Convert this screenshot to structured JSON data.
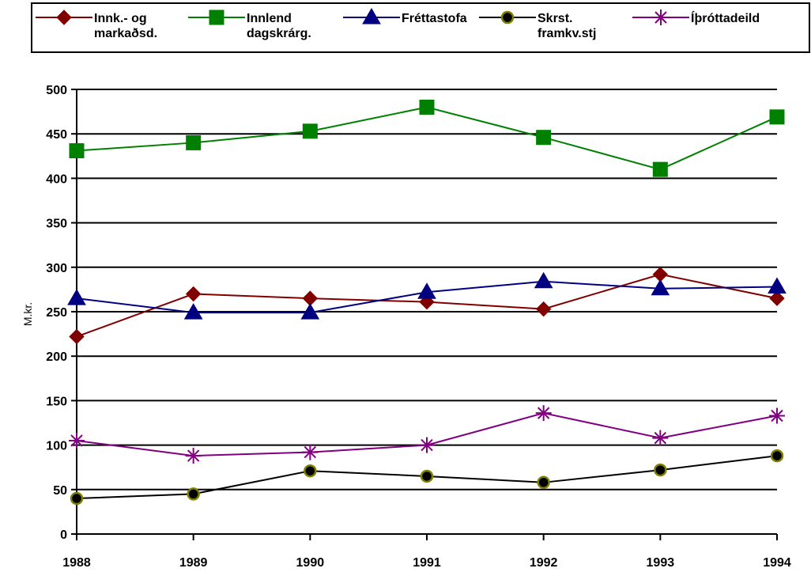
{
  "chart_data": {
    "type": "line",
    "title": "",
    "xlabel": "",
    "ylabel": "M.kr.",
    "x": [
      "1988",
      "1989",
      "1990",
      "1991",
      "1992",
      "1993",
      "1994"
    ],
    "ylim": [
      0,
      500
    ],
    "yticks": [
      0,
      50,
      100,
      150,
      200,
      250,
      300,
      350,
      400,
      450,
      500
    ],
    "grid": "horizontal",
    "legend_position": "top",
    "series": [
      {
        "name": "Innk.- og markaðsd.",
        "name_lines": [
          "Innk.- og",
          "markaðsd."
        ],
        "color": "#800000",
        "marker": "diamond",
        "values": [
          222,
          270,
          265,
          261,
          253,
          292,
          265
        ]
      },
      {
        "name": "Innlend dagskrárg.",
        "name_lines": [
          "Innlend",
          "dagskrárg."
        ],
        "color": "#008000",
        "marker": "square",
        "values": [
          431,
          440,
          453,
          480,
          446,
          410,
          469
        ]
      },
      {
        "name": "Fréttastofa",
        "name_lines": [
          "Fréttastofa"
        ],
        "color": "#000080",
        "marker": "triangle",
        "values": [
          265,
          249,
          249,
          272,
          284,
          276,
          278
        ]
      },
      {
        "name": "Skrst. framkv.stj",
        "name_lines": [
          "Skrst.",
          "framkv.stj"
        ],
        "color": "#000000",
        "marker": "circle",
        "marker_stroke": "#808000",
        "values": [
          40,
          45,
          71,
          65,
          58,
          72,
          88
        ]
      },
      {
        "name": "Íþróttadeild",
        "name_lines": [
          "Íþróttadeild"
        ],
        "color": "#800080",
        "marker": "asterisk",
        "values": [
          105,
          88,
          92,
          100,
          136,
          108,
          133
        ]
      }
    ]
  }
}
